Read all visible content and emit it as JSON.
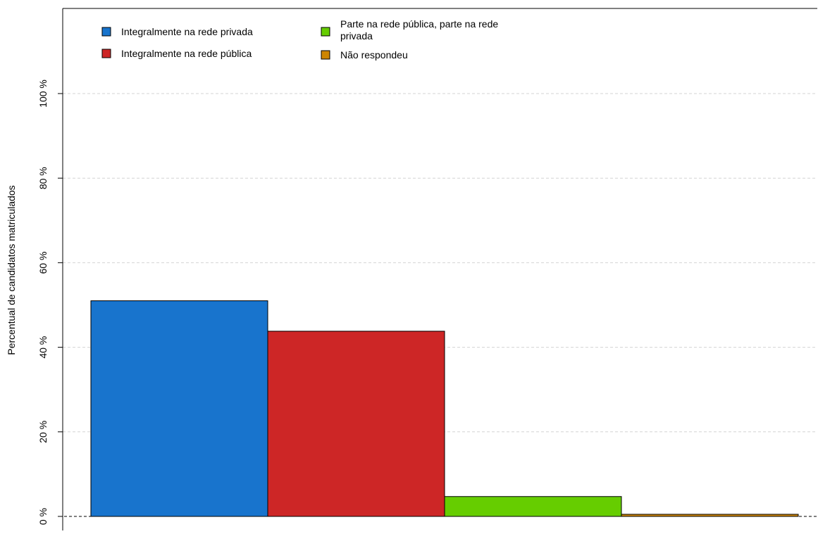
{
  "chart_data": {
    "type": "bar",
    "title": "",
    "xlabel": "",
    "ylabel": "Percentual de candidatos matriculados",
    "ylim": [
      0,
      120
    ],
    "yticks": [
      0,
      20,
      40,
      60,
      80,
      100
    ],
    "ytick_labels": [
      "0 %",
      "20 %",
      "40 %",
      "60 %",
      "80 %",
      "100 %"
    ],
    "grid": "horizontal dashed",
    "legend_position": "top-left",
    "series": [
      {
        "name": "Integralmente na rede privada",
        "value": 51.0,
        "color": "#1874cd"
      },
      {
        "name": "Integralmente na rede pública",
        "value": 43.8,
        "color": "#cd2626"
      },
      {
        "name": "Parte na rede pública, parte na rede privada",
        "value": 4.7,
        "color": "#66cd00"
      },
      {
        "name": "Não respondeu",
        "value": 0.5,
        "color": "#cd8500"
      }
    ]
  }
}
